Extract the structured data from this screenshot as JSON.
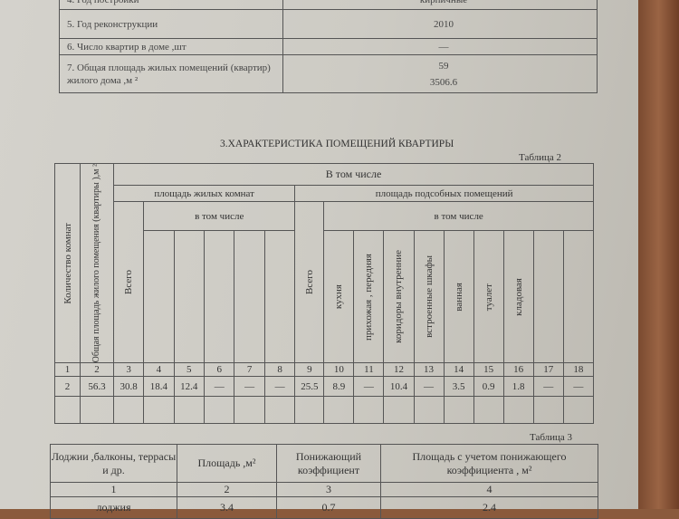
{
  "table1": {
    "rows": [
      {
        "label": "4. Год постройки",
        "value": "кирпичные"
      },
      {
        "label": "5. Год  реконструкции",
        "value": "2010"
      },
      {
        "label": "6. Число квартир в доме ,шт",
        "value": "—"
      },
      {
        "label": "7. Общая площадь жилых помещений (квартир) жилого дома ,м ²",
        "value": "59"
      },
      {
        "label": "",
        "value": "3506.6"
      }
    ]
  },
  "section_title": "3.ХАРАКТЕРИСТИКА ПОМЕЩЕНИЙ КВАРТИРЫ",
  "table2": {
    "caption": "Таблица 2",
    "h_in_total": "В том числе",
    "h_living": "площадь жилых комнат",
    "h_aux": "площадь подсобных помещений",
    "h_incl": "в том числе",
    "h_incl2": "в том числе",
    "h_rooms": "Количество комнат",
    "h_total_area": "Общая площадь жилого помещения (квартиры ),м ²",
    "h_total_living": "Всего",
    "h_total_aux": "Всего",
    "h_aux_cols": [
      "кухня",
      "прихожая , передняя",
      "коридоры внутренние",
      "встроенные шкафы",
      "ванная",
      "туалет",
      "кладовая",
      "",
      ""
    ],
    "numbers": [
      "1",
      "2",
      "3",
      "4",
      "5",
      "6",
      "7",
      "8",
      "9",
      "10",
      "11",
      "12",
      "13",
      "14",
      "15",
      "16",
      "17",
      "18"
    ],
    "row": [
      "2",
      "56.3",
      "30.8",
      "18.4",
      "12.4",
      "—",
      "—",
      "—",
      "25.5",
      "8.9",
      "—",
      "10.4",
      "—",
      "3.5",
      "0.9",
      "1.8",
      "—",
      "—"
    ]
  },
  "table3": {
    "caption": "Таблица 3",
    "headers": [
      "Лоджии ,балконы, террасы и др.",
      "Площадь ,м²",
      "Понижающий коэффициент",
      "Площадь с учетом понижающего коэффициента , м²"
    ],
    "numbers": [
      "1",
      "2",
      "3",
      "4"
    ],
    "row": [
      "лоджия",
      "3.4",
      "0.7",
      "2.4"
    ]
  }
}
